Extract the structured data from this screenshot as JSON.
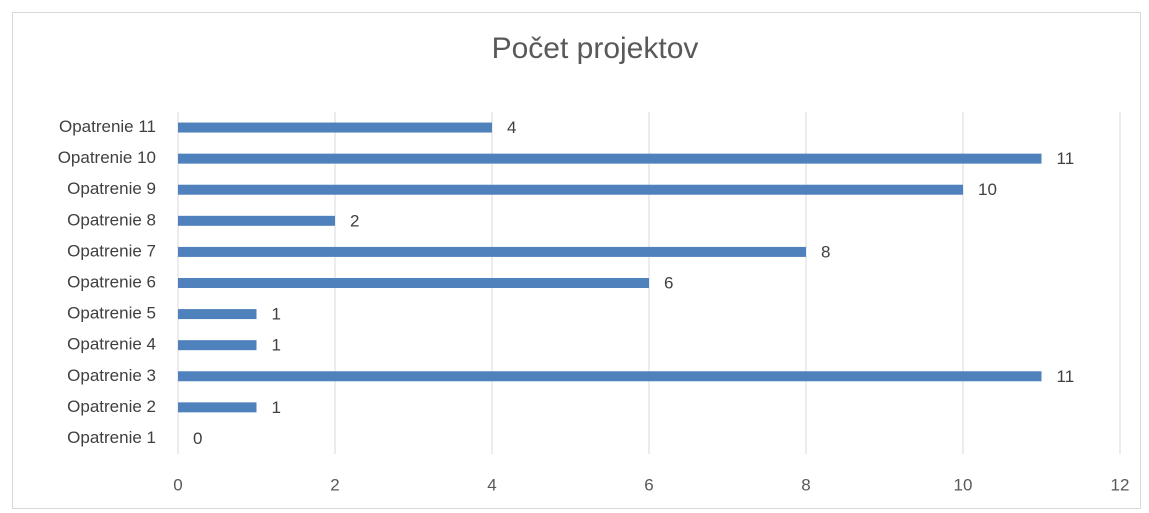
{
  "chart_data": {
    "type": "bar",
    "orientation": "horizontal",
    "title": "Počet projektov",
    "categories": [
      "Opatrenie 1",
      "Opatrenie 2",
      "Opatrenie 3",
      "Opatrenie 4",
      "Opatrenie 5",
      "Opatrenie 6",
      "Opatrenie 7",
      "Opatrenie 8",
      "Opatrenie 9",
      "Opatrenie 10",
      "Opatrenie 11"
    ],
    "values": [
      0,
      1,
      11,
      1,
      1,
      6,
      8,
      2,
      10,
      11,
      4
    ],
    "color": "#4f81bd",
    "xlim": [
      0,
      12
    ],
    "xticks": [
      0,
      2,
      4,
      6,
      8,
      10,
      12
    ],
    "grid": true
  }
}
